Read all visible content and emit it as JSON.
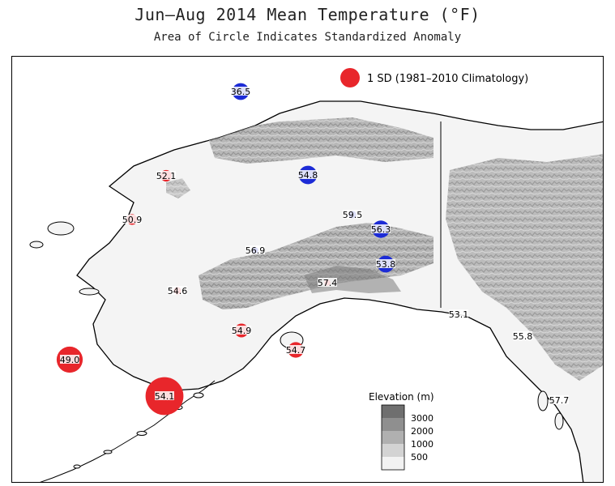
{
  "title": "Jun–Aug 2014 Mean Temperature (°F)",
  "subtitle": "Area of Circle Indicates Standardized Anomaly",
  "legend": {
    "sd_label": "1 SD (1981–2010 Climatology)",
    "warm_color": "#e8262b",
    "cold_color": "#1c2bd6"
  },
  "elevation_legend": {
    "title": "Elevation (m)",
    "levels": [
      "3000",
      "2000",
      "1000",
      "500"
    ],
    "colors": [
      "#6f6f6f",
      "#8f8f8f",
      "#b0b0b0",
      "#d3d3d3",
      "#f2f2f2"
    ]
  },
  "stations": [
    {
      "label": "36.5",
      "anomaly_sd": -0.75,
      "color": "cold"
    },
    {
      "label": "52.1",
      "anomaly_sd": 0.35,
      "color": "warm"
    },
    {
      "label": "54.8",
      "anomaly_sd": 0.9,
      "color": "cold"
    },
    {
      "label": "50.9",
      "anomaly_sd": 0.3,
      "color": "warm"
    },
    {
      "label": "59.5",
      "anomaly_sd": 0.15,
      "color": "cold"
    },
    {
      "label": "56.3",
      "anomaly_sd": 0.8,
      "color": "cold"
    },
    {
      "label": "56.9",
      "anomaly_sd": 0.1,
      "color": "cold"
    },
    {
      "label": "53.8",
      "anomaly_sd": 0.75,
      "color": "cold"
    },
    {
      "label": "57.4",
      "anomaly_sd": 0.1,
      "color": "warm"
    },
    {
      "label": "54.6",
      "anomaly_sd": 0.15,
      "color": "warm"
    },
    {
      "label": "54.9",
      "anomaly_sd": 0.5,
      "color": "warm"
    },
    {
      "label": "54.7",
      "anomaly_sd": 0.65,
      "color": "warm"
    },
    {
      "label": "49.0",
      "anomaly_sd": 1.8,
      "color": "warm"
    },
    {
      "label": "54.1",
      "anomaly_sd": 3.8,
      "color": "warm"
    },
    {
      "label": "53.1",
      "anomaly_sd": 0.0,
      "color": "warm"
    },
    {
      "label": "55.8",
      "anomaly_sd": 0.0,
      "color": "warm"
    },
    {
      "label": "57.7",
      "anomaly_sd": 0.0,
      "color": "warm"
    }
  ]
}
